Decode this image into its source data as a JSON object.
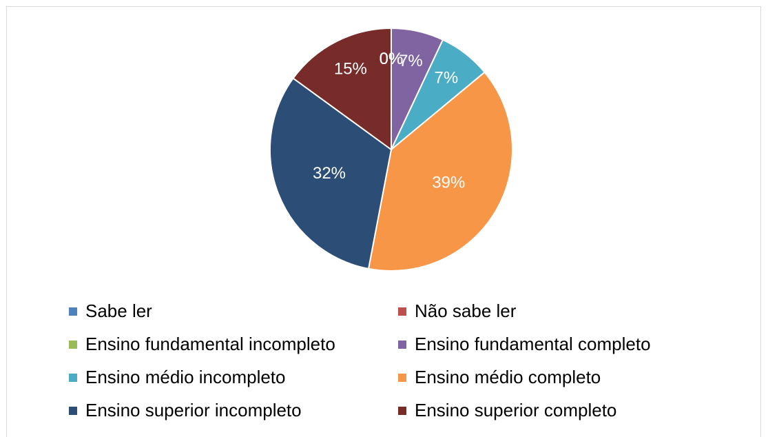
{
  "chart_data": {
    "type": "pie",
    "categories": [
      "Sabe ler",
      "Não sabe ler",
      "Ensino fundamental incompleto",
      "Ensino fundamental completo",
      "Ensino médio incompleto",
      "Ensino médio completo",
      "Ensino superior incompleto",
      "Ensino superior completo"
    ],
    "values": [
      0,
      0,
      0,
      7,
      7,
      39,
      32,
      15
    ],
    "value_labels": [
      "0%",
      "0%",
      "0%",
      "7%",
      "7%",
      "39%",
      "32%",
      "15%"
    ],
    "colors": [
      "#4f81bd",
      "#c0504d",
      "#9bbb59",
      "#8064a2",
      "#4bacc6",
      "#f79646",
      "#2c4d75",
      "#772c2a"
    ],
    "legend": "bottom"
  }
}
